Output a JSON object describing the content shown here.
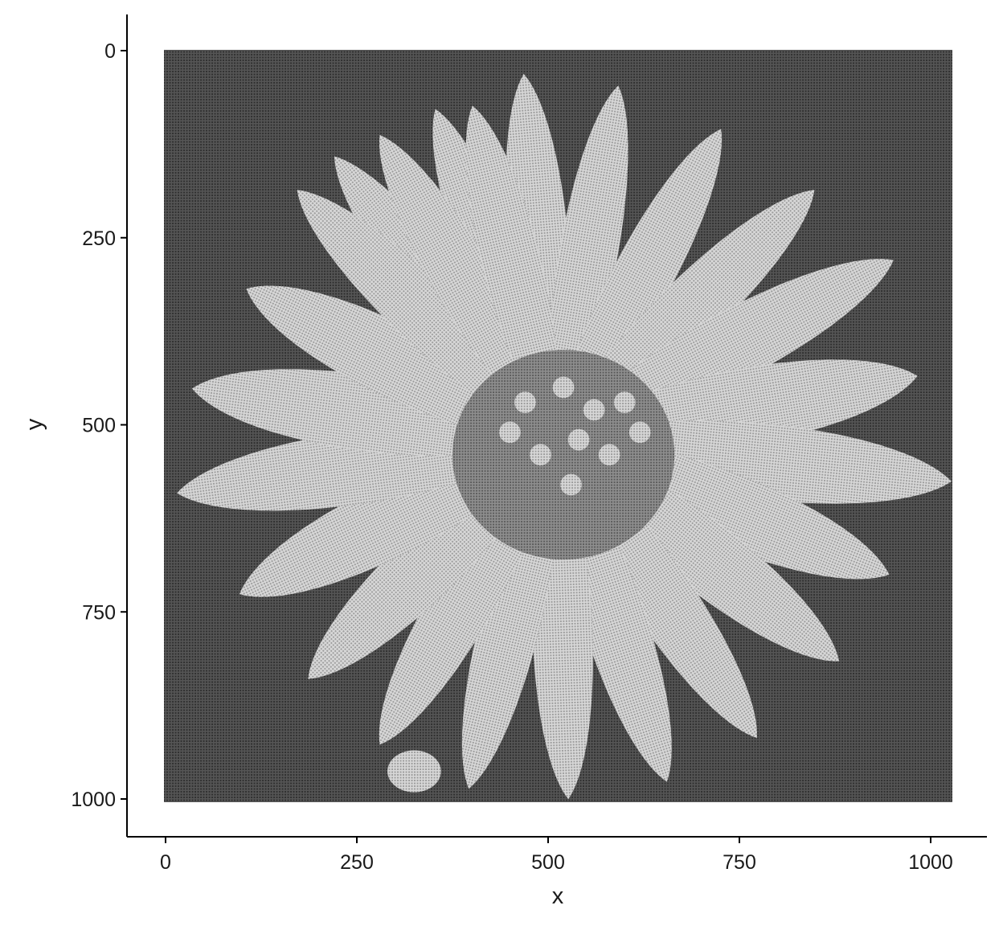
{
  "chart_data": {
    "type": "scatter",
    "description_kind": "image rendered as a dense grid of small point markers in grayscale",
    "xlabel": "x",
    "ylabel": "y",
    "xlim": [
      -48,
      1068
    ],
    "ylim": [
      1050,
      -48
    ],
    "y_reversed": true,
    "x_ticks": [
      0,
      250,
      500,
      750,
      1000
    ],
    "y_ticks": [
      0,
      250,
      500,
      750,
      1000
    ],
    "grid": false,
    "legend": "none",
    "point_grid": {
      "x_min": 0,
      "x_max": 1024,
      "y_min": 0,
      "y_max": 1003
    },
    "colors": {
      "background_points": "#4d4d4d",
      "petal_points": "#cfcfcf",
      "center_points": "#8a8a8a",
      "axis": "#000000"
    },
    "regions": [
      {
        "name": "petals",
        "center": [
          510,
          520
        ],
        "shade": "#cfcfcf"
      },
      {
        "name": "flower-center",
        "center": [
          520,
          540
        ],
        "shade": "#8a8a8a"
      },
      {
        "name": "small-blob",
        "center": [
          325,
          963
        ],
        "shade": "#cfcfcf"
      }
    ]
  }
}
